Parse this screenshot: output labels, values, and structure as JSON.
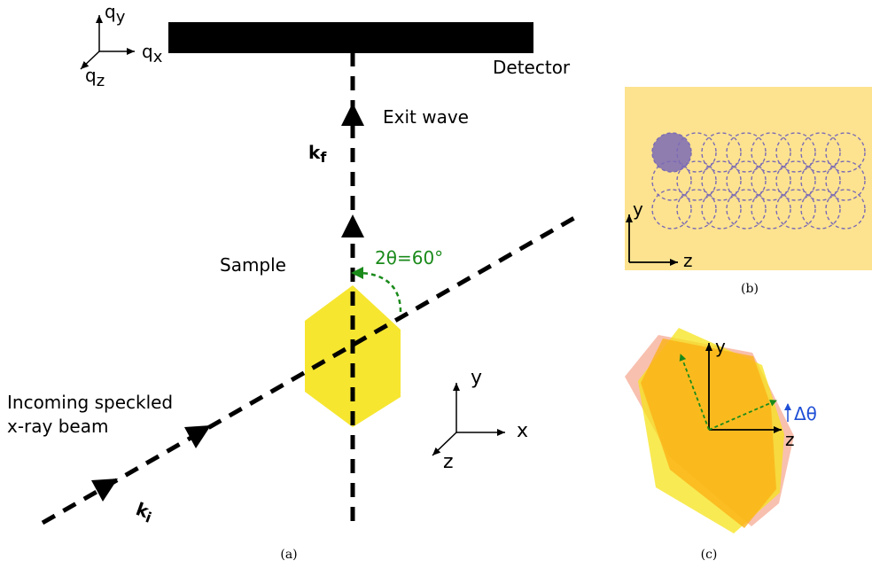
{
  "panel_a": {
    "detector_label": "Detector",
    "exit_wave_label": "Exit wave",
    "kf_label": "k",
    "kf_sub": "f",
    "angle_label": "2θ=60°",
    "sample_label": "Sample",
    "incoming_line1": "Incoming speckled",
    "incoming_line2": "x-ray beam",
    "ki_label": "k",
    "ki_sub": "i",
    "q_axes": {
      "y": "q",
      "y_sub": "y",
      "x": "q",
      "x_sub": "x",
      "z": "q",
      "z_sub": "z"
    },
    "lab_axes": {
      "y": "y",
      "x": "x",
      "z": "z"
    },
    "caption": "(a)"
  },
  "panel_b": {
    "axis_y": "y",
    "axis_z": "z",
    "caption": "(b)"
  },
  "panel_c": {
    "axis_y": "y",
    "axis_z": "z",
    "rotation_label": "Δθ",
    "caption": "(c)"
  },
  "colors": {
    "sample_yellow": "#f5e31a",
    "rotated_salmon": "#f7b9a6",
    "overlap_orange": "#fbb117",
    "scan_background": "#fde38f",
    "probe_purple": "#7b6bb5",
    "angle_green": "#1a8a1a",
    "delta_blue": "#1f4fd6"
  }
}
